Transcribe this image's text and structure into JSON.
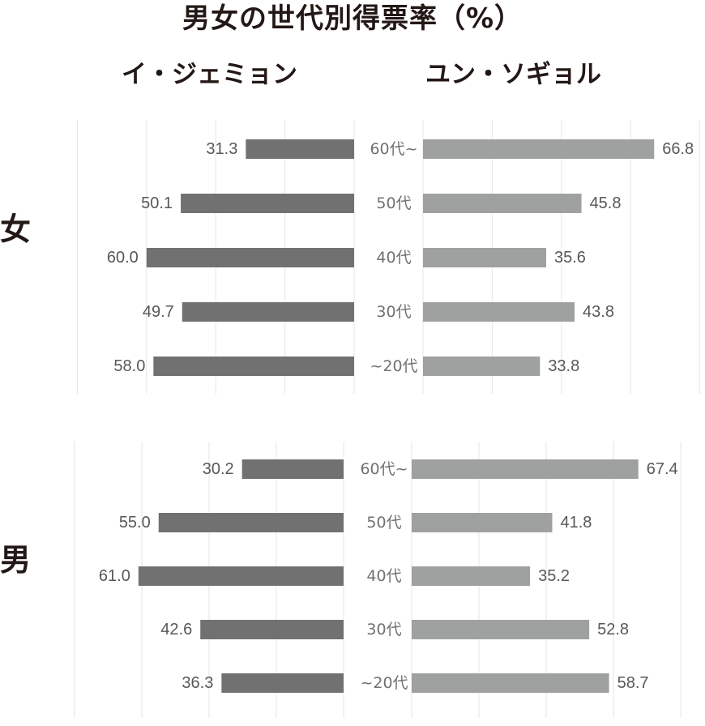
{
  "title": "男女の世代別得票率（%）",
  "candidates": [
    "イ・ジェミョン",
    "ユン・ソギョル"
  ],
  "colors": {
    "left_bar": "#727171",
    "right_bar": "#9fa0a0",
    "grid": "#e6e6e6"
  },
  "chart_data": [
    {
      "type": "bar",
      "group": "女",
      "categories": [
        "60代~",
        "50代",
        "40代",
        "30代",
        "~20代"
      ],
      "series": [
        {
          "name": "イ・ジェミョン",
          "values": [
            31.3,
            50.1,
            60.0,
            49.7,
            58.0
          ]
        },
        {
          "name": "ユン・ソギョル",
          "values": [
            66.8,
            45.8,
            35.6,
            43.8,
            33.8
          ]
        }
      ],
      "xlim": [
        0,
        80
      ],
      "grid": true
    },
    {
      "type": "bar",
      "group": "男",
      "categories": [
        "60代~",
        "50代",
        "40代",
        "30代",
        "~20代"
      ],
      "series": [
        {
          "name": "イ・ジェミョン",
          "values": [
            30.2,
            55.0,
            61.0,
            42.6,
            36.3
          ]
        },
        {
          "name": "ユン・ソギョル",
          "values": [
            67.4,
            41.8,
            35.2,
            52.8,
            58.7
          ]
        }
      ],
      "xlim": [
        0,
        80
      ],
      "grid": true
    }
  ]
}
